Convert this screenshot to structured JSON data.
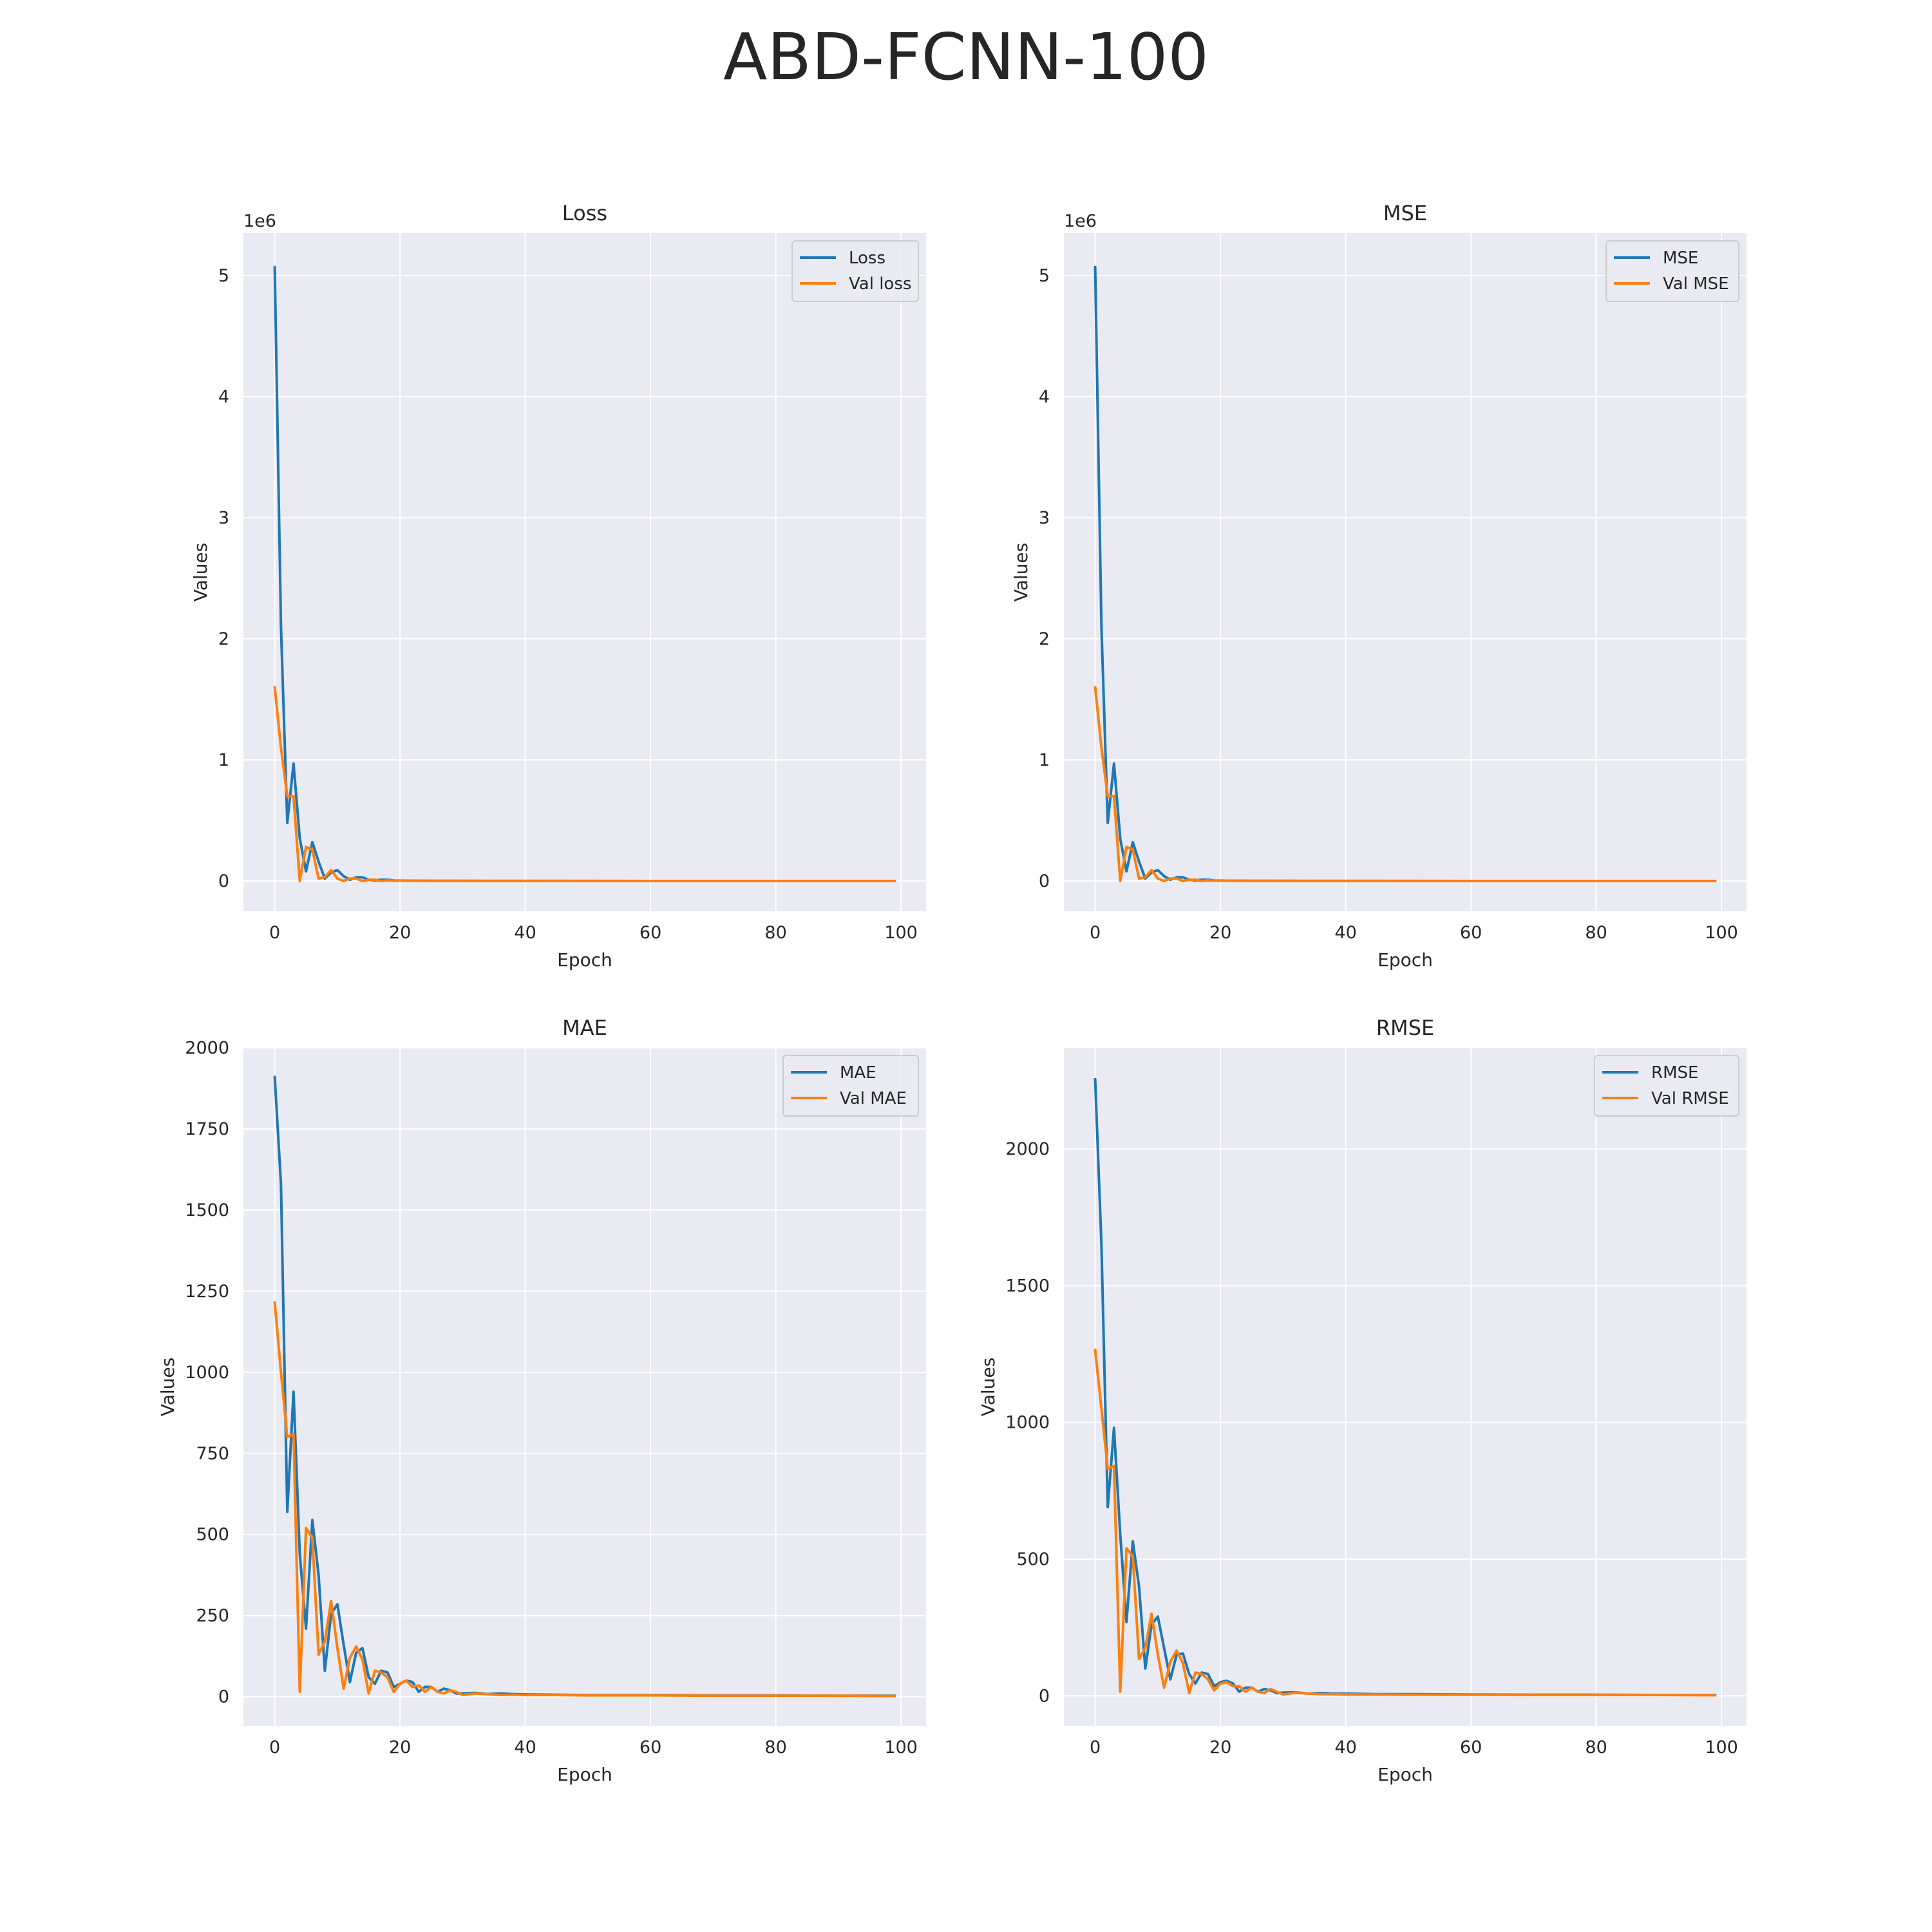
{
  "figure_title": "ABD-FCNN-100",
  "colors": {
    "series_train": "#1f77b4",
    "series_val": "#ff7f0e",
    "plot_background": "#eaeaf2",
    "grid": "#ffffff"
  },
  "chart_data": [
    {
      "type": "line",
      "title": "Loss",
      "xlabel": "Epoch",
      "ylabel": "Values",
      "offset_label": "1e6",
      "xlim": [
        -5,
        104
      ],
      "ylim": [
        -0.25,
        5.35
      ],
      "xticks": [
        0,
        20,
        40,
        60,
        80,
        100
      ],
      "yticks": [
        0,
        1,
        2,
        3,
        4,
        5
      ],
      "legend_loc": "upper right",
      "grid": true,
      "series": [
        {
          "name": "Loss",
          "x": [
            0,
            1,
            2,
            3,
            4,
            5,
            6,
            7,
            8,
            9,
            10,
            11,
            12,
            13,
            14,
            15,
            16,
            17,
            18,
            19,
            20,
            22,
            25,
            30,
            40,
            50,
            60,
            70,
            80,
            90,
            99
          ],
          "y": [
            5.07,
            2.1,
            0.48,
            0.97,
            0.35,
            0.08,
            0.32,
            0.16,
            0.02,
            0.07,
            0.09,
            0.04,
            0.01,
            0.03,
            0.03,
            0.01,
            0.005,
            0.01,
            0.01,
            0.004,
            0.003,
            0.002,
            0.001,
            0.001,
            0.0005,
            0.0003,
            0.0002,
            0.0002,
            0.0001,
            0.0001,
            0.0001
          ]
        },
        {
          "name": "Val loss",
          "x": [
            0,
            1,
            2,
            3,
            4,
            5,
            6,
            7,
            8,
            9,
            10,
            11,
            12,
            13,
            14,
            15,
            16,
            17,
            18,
            19,
            20,
            22,
            25,
            30,
            40,
            50,
            60,
            70,
            80,
            90,
            99
          ],
          "y": [
            1.6,
            1.1,
            0.7,
            0.7,
            0.0,
            0.28,
            0.26,
            0.02,
            0.03,
            0.09,
            0.02,
            0.0,
            0.02,
            0.02,
            0.0,
            0.01,
            0.01,
            0.0,
            0.005,
            0.002,
            0.003,
            0.001,
            0.001,
            0.0005,
            0.0003,
            0.0002,
            0.0001,
            0.0001,
            0.0001,
            0.0001,
            0.0001
          ]
        }
      ]
    },
    {
      "type": "line",
      "title": "MSE",
      "xlabel": "Epoch",
      "ylabel": "Values",
      "offset_label": "1e6",
      "xlim": [
        -5,
        104
      ],
      "ylim": [
        -0.25,
        5.35
      ],
      "xticks": [
        0,
        20,
        40,
        60,
        80,
        100
      ],
      "yticks": [
        0,
        1,
        2,
        3,
        4,
        5
      ],
      "legend_loc": "upper right",
      "grid": true,
      "series": [
        {
          "name": "MSE",
          "x": [
            0,
            1,
            2,
            3,
            4,
            5,
            6,
            7,
            8,
            9,
            10,
            11,
            12,
            13,
            14,
            15,
            16,
            17,
            18,
            19,
            20,
            22,
            25,
            30,
            40,
            50,
            60,
            70,
            80,
            90,
            99
          ],
          "y": [
            5.07,
            2.1,
            0.48,
            0.97,
            0.35,
            0.08,
            0.32,
            0.16,
            0.02,
            0.07,
            0.09,
            0.04,
            0.01,
            0.03,
            0.03,
            0.01,
            0.005,
            0.01,
            0.01,
            0.004,
            0.003,
            0.002,
            0.001,
            0.001,
            0.0005,
            0.0003,
            0.0002,
            0.0002,
            0.0001,
            0.0001,
            0.0001
          ]
        },
        {
          "name": "Val MSE",
          "x": [
            0,
            1,
            2,
            3,
            4,
            5,
            6,
            7,
            8,
            9,
            10,
            11,
            12,
            13,
            14,
            15,
            16,
            17,
            18,
            19,
            20,
            22,
            25,
            30,
            40,
            50,
            60,
            70,
            80,
            90,
            99
          ],
          "y": [
            1.6,
            1.1,
            0.7,
            0.7,
            0.0,
            0.28,
            0.26,
            0.02,
            0.03,
            0.09,
            0.02,
            0.0,
            0.02,
            0.02,
            0.0,
            0.01,
            0.01,
            0.0,
            0.005,
            0.002,
            0.003,
            0.001,
            0.001,
            0.0005,
            0.0003,
            0.0002,
            0.0001,
            0.0001,
            0.0001,
            0.0001,
            0.0001
          ]
        }
      ]
    },
    {
      "type": "line",
      "title": "MAE",
      "xlabel": "Epoch",
      "ylabel": "Values",
      "offset_label": "",
      "xlim": [
        -5,
        104
      ],
      "ylim": [
        -90,
        2000
      ],
      "xticks": [
        0,
        20,
        40,
        60,
        80,
        100
      ],
      "yticks": [
        0,
        250,
        500,
        750,
        1000,
        1250,
        1500,
        1750,
        2000
      ],
      "legend_loc": "upper right",
      "grid": true,
      "series": [
        {
          "name": "MAE",
          "x": [
            0,
            1,
            2,
            3,
            4,
            5,
            6,
            7,
            8,
            9,
            10,
            11,
            12,
            13,
            14,
            15,
            16,
            17,
            18,
            19,
            20,
            21,
            22,
            23,
            24,
            25,
            26,
            27,
            28,
            29,
            30,
            32,
            34,
            36,
            38,
            40,
            45,
            50,
            60,
            70,
            80,
            90,
            99
          ],
          "y": [
            1910,
            1580,
            570,
            940,
            440,
            210,
            545,
            375,
            80,
            255,
            285,
            160,
            45,
            135,
            150,
            60,
            40,
            80,
            75,
            30,
            40,
            50,
            45,
            15,
            30,
            30,
            15,
            25,
            20,
            10,
            10,
            12,
            8,
            10,
            8,
            7,
            6,
            5,
            5,
            4,
            4,
            3,
            3
          ]
        },
        {
          "name": "Val MAE",
          "x": [
            0,
            1,
            2,
            3,
            4,
            5,
            6,
            7,
            8,
            9,
            10,
            11,
            12,
            13,
            14,
            15,
            16,
            17,
            18,
            19,
            20,
            21,
            22,
            23,
            24,
            25,
            26,
            27,
            28,
            29,
            30,
            32,
            34,
            36,
            38,
            40,
            45,
            50,
            60,
            70,
            80,
            90,
            99
          ],
          "y": [
            1215,
            1000,
            800,
            810,
            15,
            520,
            490,
            130,
            170,
            295,
            150,
            25,
            120,
            155,
            115,
            10,
            80,
            75,
            60,
            15,
            40,
            50,
            30,
            35,
            15,
            30,
            15,
            10,
            20,
            15,
            5,
            10,
            8,
            5,
            6,
            5,
            5,
            4,
            4,
            3,
            3,
            3,
            2
          ]
        }
      ]
    },
    {
      "type": "line",
      "title": "RMSE",
      "xlabel": "Epoch",
      "ylabel": "Values",
      "offset_label": "",
      "xlim": [
        -5,
        104
      ],
      "ylim": [
        -110,
        2370
      ],
      "xticks": [
        0,
        20,
        40,
        60,
        80,
        100
      ],
      "yticks": [
        0,
        500,
        1000,
        1500,
        2000
      ],
      "legend_loc": "upper right",
      "grid": true,
      "series": [
        {
          "name": "RMSE",
          "x": [
            0,
            1,
            2,
            3,
            4,
            5,
            6,
            7,
            8,
            9,
            10,
            11,
            12,
            13,
            14,
            15,
            16,
            17,
            18,
            19,
            20,
            21,
            22,
            23,
            24,
            25,
            26,
            27,
            28,
            29,
            30,
            32,
            34,
            36,
            38,
            40,
            45,
            50,
            60,
            70,
            80,
            90,
            99
          ],
          "y": [
            2255,
            1650,
            690,
            980,
            590,
            270,
            565,
            400,
            100,
            260,
            290,
            175,
            60,
            150,
            155,
            80,
            45,
            85,
            80,
            35,
            50,
            55,
            45,
            15,
            30,
            30,
            15,
            25,
            20,
            10,
            12,
            13,
            8,
            10,
            8,
            8,
            6,
            6,
            5,
            4,
            4,
            3,
            3
          ]
        },
        {
          "name": "Val RMSE",
          "x": [
            0,
            1,
            2,
            3,
            4,
            5,
            6,
            7,
            8,
            9,
            10,
            11,
            12,
            13,
            14,
            15,
            16,
            17,
            18,
            19,
            20,
            21,
            22,
            23,
            24,
            25,
            26,
            27,
            28,
            29,
            30,
            32,
            34,
            36,
            38,
            40,
            45,
            50,
            60,
            70,
            80,
            90,
            99
          ],
          "y": [
            1265,
            1050,
            830,
            840,
            15,
            540,
            510,
            135,
            175,
            300,
            150,
            30,
            125,
            165,
            120,
            10,
            85,
            80,
            60,
            20,
            45,
            50,
            35,
            35,
            15,
            30,
            15,
            10,
            25,
            15,
            5,
            12,
            8,
            6,
            6,
            5,
            5,
            4,
            4,
            3,
            3,
            3,
            2
          ]
        }
      ]
    }
  ]
}
